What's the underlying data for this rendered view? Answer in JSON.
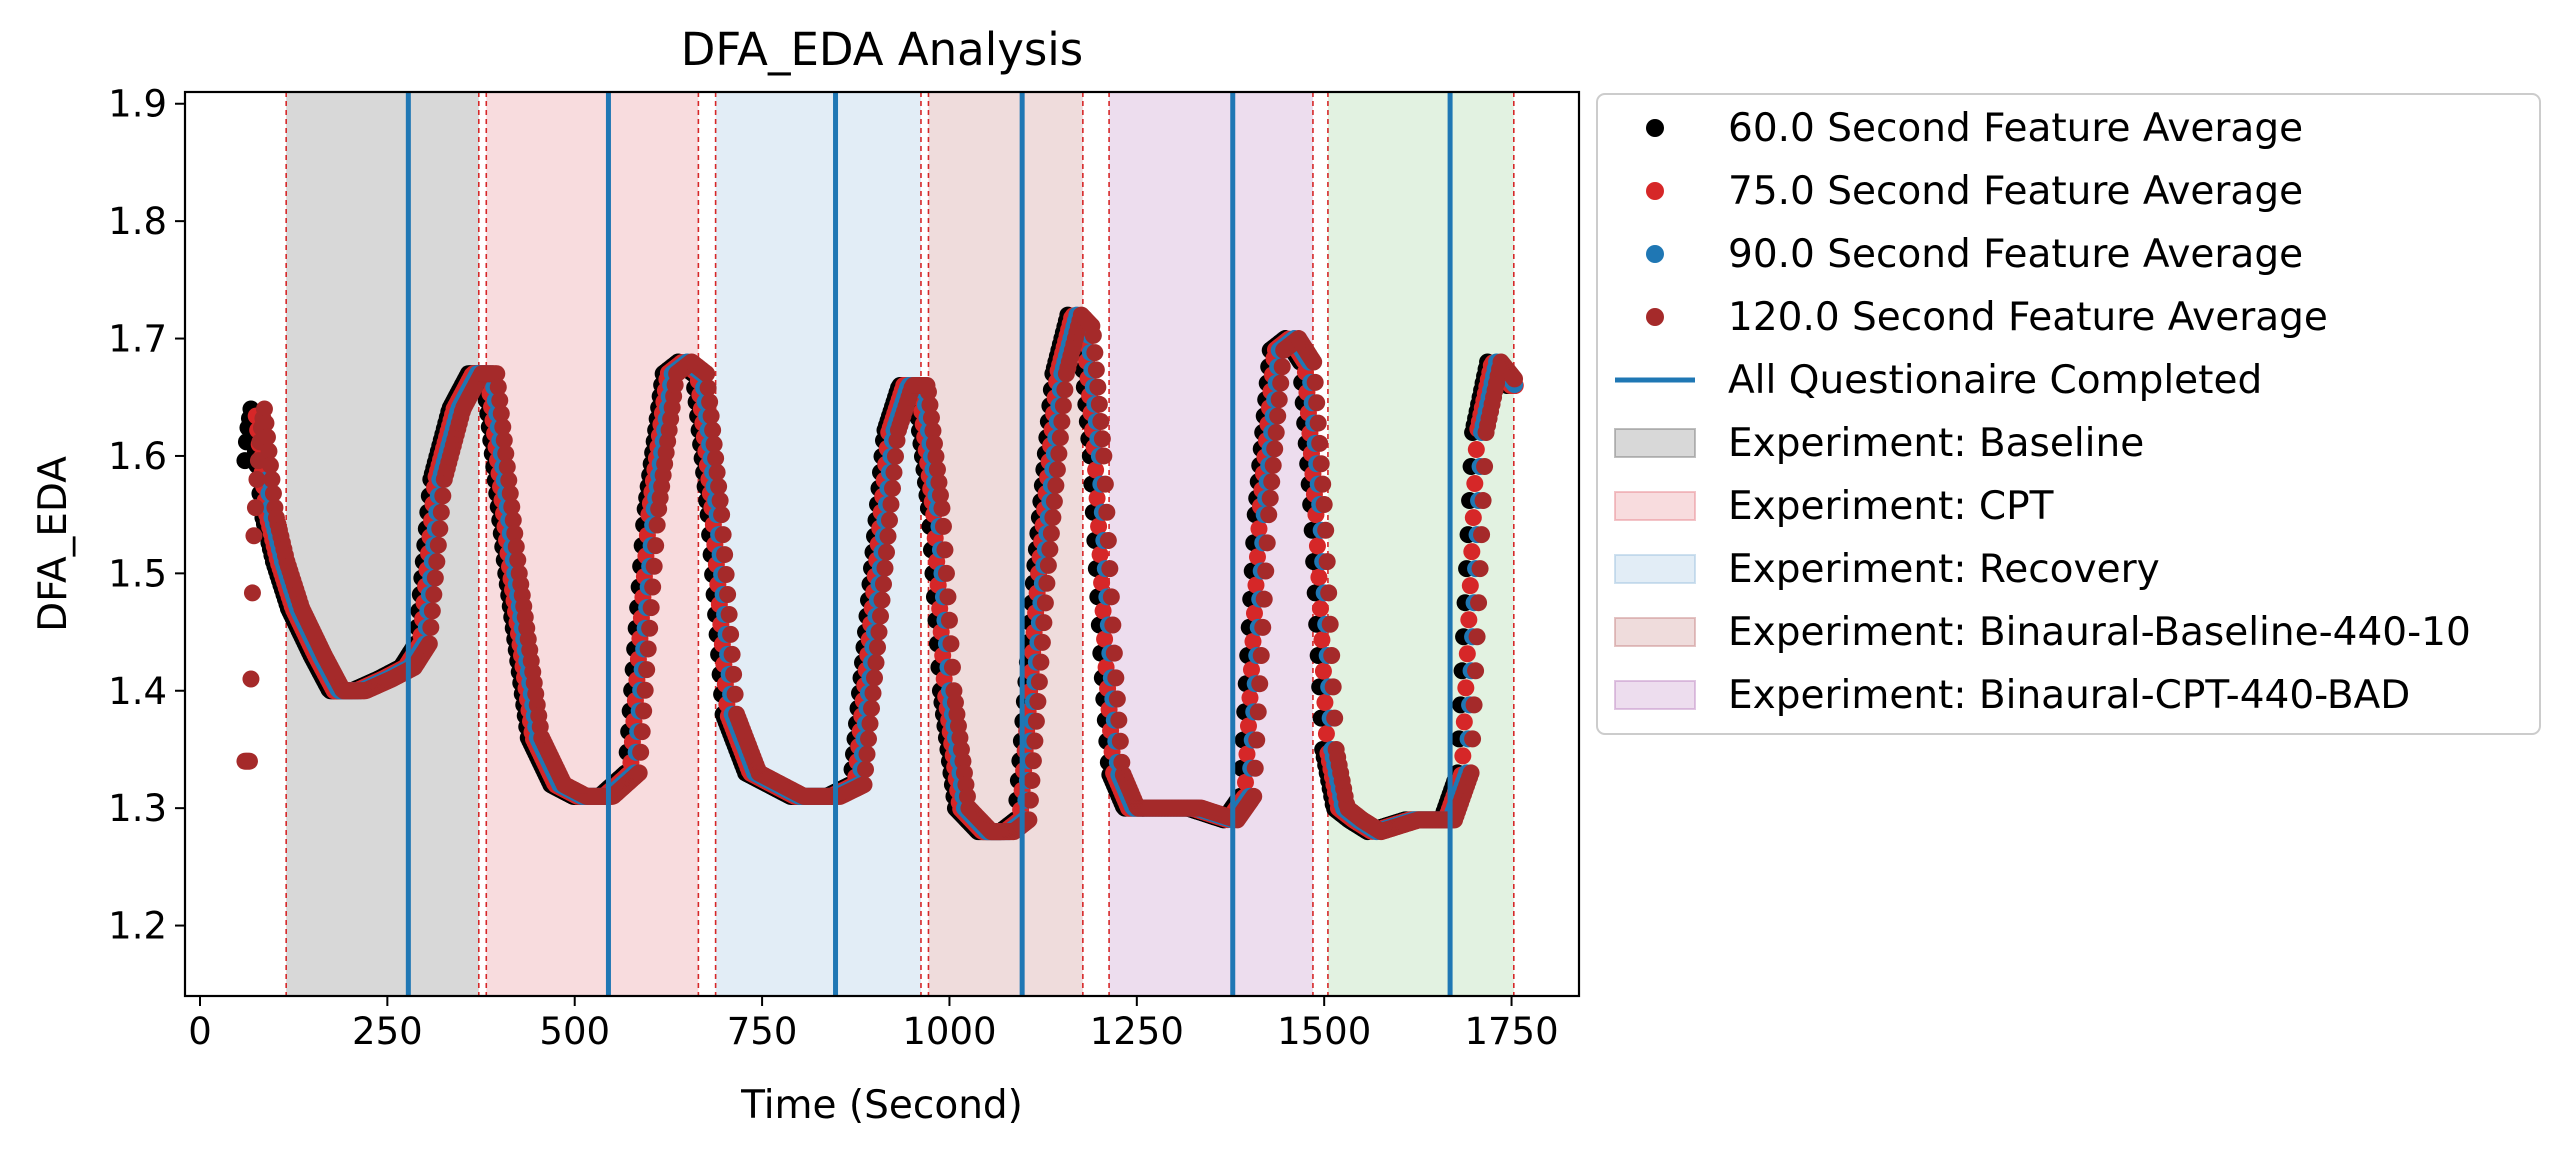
{
  "chart_data": {
    "type": "scatter",
    "title": "DFA_EDA Analysis",
    "xlabel": "Time (Second)",
    "ylabel": "DFA_EDA",
    "xlim": [
      -20,
      1840
    ],
    "ylim": [
      1.14,
      1.91
    ],
    "xticks": [
      0,
      250,
      500,
      750,
      1000,
      1250,
      1500,
      1750
    ],
    "xtick_labels": [
      "0",
      "250",
      "500",
      "750",
      "1000",
      "1250",
      "1500",
      "1750"
    ],
    "yticks": [
      1.2,
      1.3,
      1.4,
      1.5,
      1.6,
      1.7,
      1.8,
      1.9
    ],
    "ytick_labels": [
      "1.2",
      "1.3",
      "1.4",
      "1.5",
      "1.6",
      "1.7",
      "1.8",
      "1.9"
    ],
    "grid": false,
    "legend_position": "outside-right",
    "phases": [
      {
        "label": "Experiment: Baseline",
        "start": 115,
        "end": 372,
        "color": "#7f7f7f",
        "in_legend": true
      },
      {
        "label": "Experiment: CPT",
        "start": 382,
        "end": 665,
        "color": "#e88a92",
        "in_legend": true
      },
      {
        "label": "Experiment: Recovery",
        "start": 688,
        "end": 962,
        "color": "#9fc3e0",
        "in_legend": true
      },
      {
        "label": "Experiment: Binaural-Baseline-440-10",
        "start": 972,
        "end": 1178,
        "color": "#c98a8a",
        "in_legend": true
      },
      {
        "label": "Experiment: Binaural-CPT-440-BAD",
        "start": 1213,
        "end": 1485,
        "color": "#c28ec6",
        "in_legend": true
      },
      {
        "label": "",
        "start": 1505,
        "end": 1753,
        "color": "#9fd49a",
        "in_legend": false
      }
    ],
    "phase_boundaries": [
      115,
      372,
      382,
      665,
      688,
      962,
      972,
      1178,
      1213,
      1485,
      1505,
      1753
    ],
    "questionnaire_completed": {
      "label": "All Questionaire Completed",
      "x": [
        278,
        545,
        848,
        1097,
        1378,
        1668
      ],
      "color": "#1f77b4"
    },
    "series": [
      {
        "name": "60.0 Second Feature Average",
        "color": "#000000",
        "x_range": [
          60,
          1755
        ],
        "offset": -12
      },
      {
        "name": "75.0 Second Feature Average",
        "color": "#d62728",
        "x_range": [
          75,
          1755
        ],
        "offset": -6
      },
      {
        "name": "90.0 Second Feature Average",
        "color": "#1f77b4",
        "x_range": [
          90,
          1755
        ],
        "offset": 0
      },
      {
        "name": "120.0 Second Feature Average",
        "color": "#a52a2a",
        "x_range": [
          60,
          1755
        ],
        "offset": 6
      }
    ],
    "profile": {
      "x": [
        60,
        62,
        65,
        70,
        75,
        80,
        85,
        95,
        110,
        130,
        160,
        185,
        215,
        250,
        280,
        300,
        320,
        345,
        370,
        390,
        420,
        450,
        480,
        510,
        545,
        580,
        605,
        630,
        650,
        670,
        690,
        710,
        740,
        800,
        848,
        880,
        900,
        925,
        945,
        965,
        985,
        1000,
        1020,
        1050,
        1080,
        1100,
        1125,
        1150,
        1170,
        1185,
        1200,
        1215,
        1225,
        1245,
        1275,
        1330,
        1378,
        1400,
        1420,
        1440,
        1460,
        1480,
        1495,
        1510,
        1525,
        1545,
        1570,
        1620,
        1668,
        1690,
        1710,
        1730,
        1755
      ],
      "y": [
        1.34,
        1.41,
        1.52,
        1.58,
        1.62,
        1.64,
        1.61,
        1.55,
        1.51,
        1.47,
        1.43,
        1.4,
        1.4,
        1.41,
        1.42,
        1.44,
        1.58,
        1.64,
        1.67,
        1.67,
        1.5,
        1.36,
        1.32,
        1.31,
        1.31,
        1.33,
        1.55,
        1.67,
        1.68,
        1.67,
        1.55,
        1.38,
        1.33,
        1.31,
        1.31,
        1.32,
        1.45,
        1.62,
        1.66,
        1.66,
        1.55,
        1.4,
        1.3,
        1.28,
        1.28,
        1.29,
        1.5,
        1.67,
        1.72,
        1.71,
        1.6,
        1.42,
        1.33,
        1.3,
        1.3,
        1.3,
        1.29,
        1.31,
        1.55,
        1.69,
        1.7,
        1.68,
        1.55,
        1.35,
        1.3,
        1.29,
        1.28,
        1.29,
        1.29,
        1.33,
        1.62,
        1.68,
        1.66
      ]
    }
  }
}
